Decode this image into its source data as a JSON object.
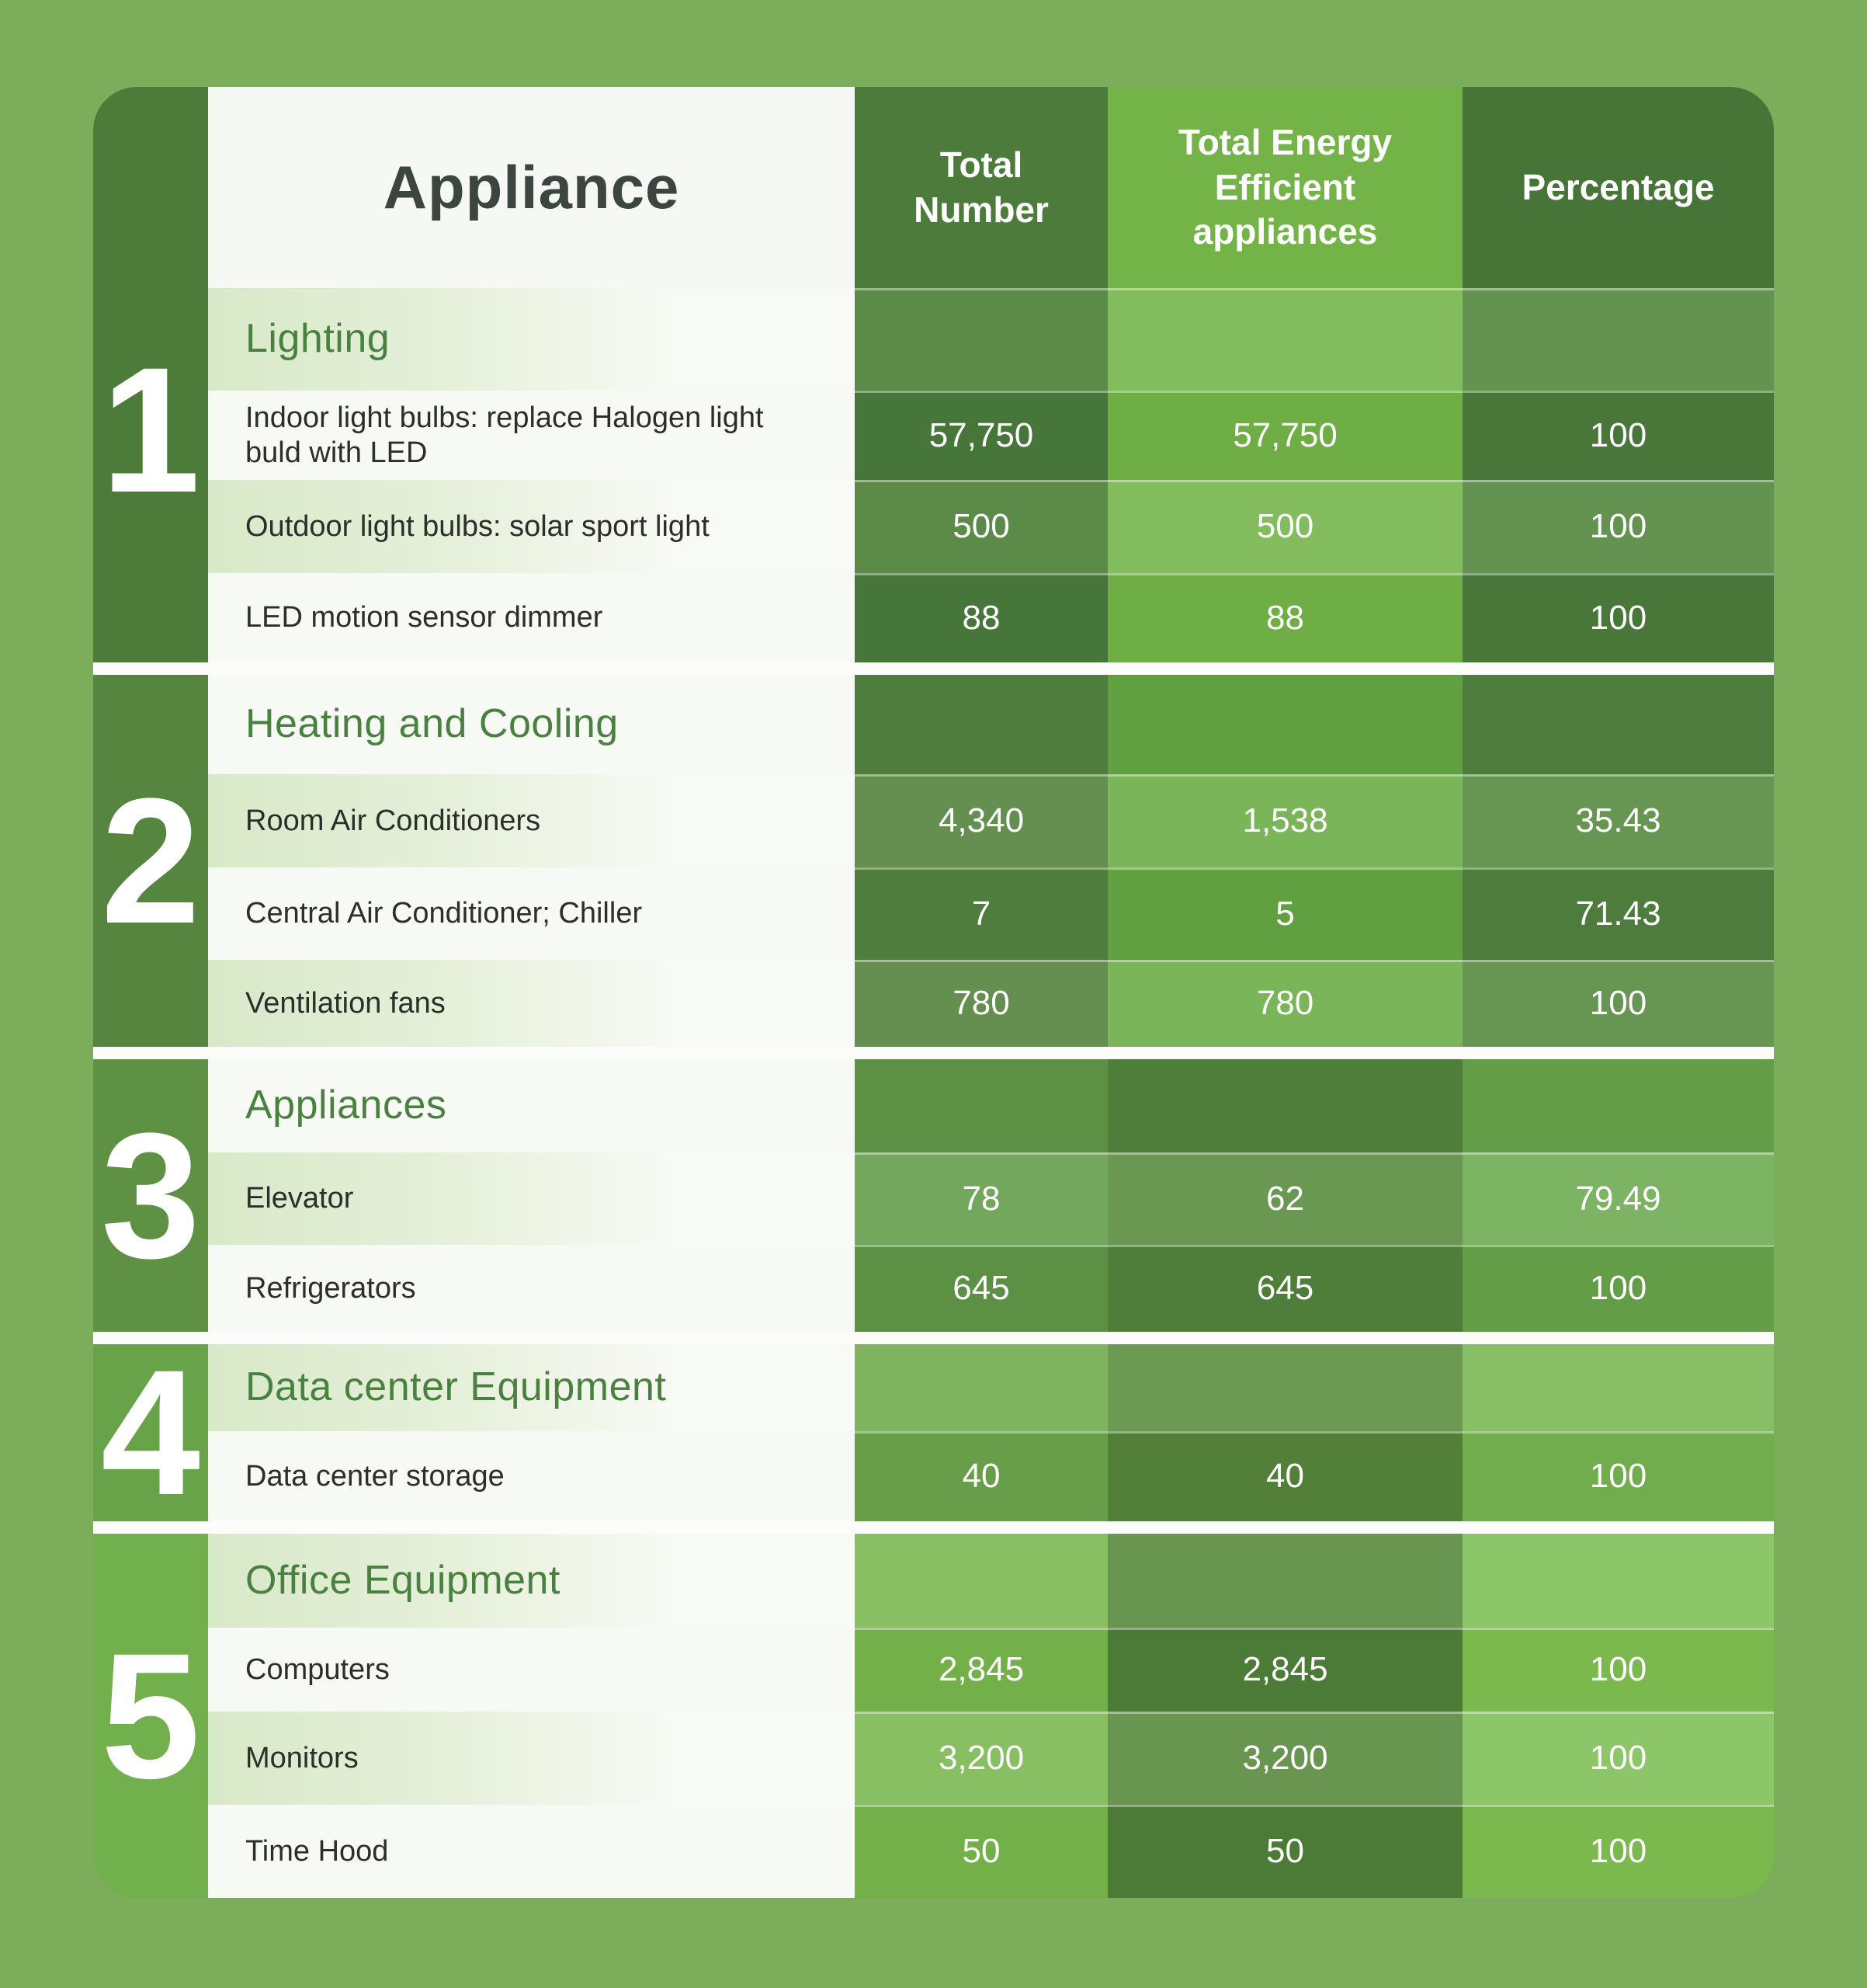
{
  "table": {
    "header": {
      "appliance": "Appliance",
      "total_number": "Total Number",
      "energy_efficient": "Total Energy Efficient appliances",
      "percentage": "Percentage"
    },
    "sections": [
      {
        "index": "1",
        "title": "Lighting",
        "rows": [
          {
            "appliance": "Indoor light bulbs: replace Halogen light buld with LED",
            "total": "57,750",
            "efficient": "57,750",
            "percentage": "100"
          },
          {
            "appliance": "Outdoor light bulbs: solar sport light",
            "total": "500",
            "efficient": "500",
            "percentage": "100"
          },
          {
            "appliance": "LED motion sensor dimmer",
            "total": "88",
            "efficient": "88",
            "percentage": "100"
          }
        ]
      },
      {
        "index": "2",
        "title": "Heating and Cooling",
        "rows": [
          {
            "appliance": "Room Air Conditioners",
            "total": "4,340",
            "efficient": "1,538",
            "percentage": "35.43"
          },
          {
            "appliance": "Central Air Conditioner; Chiller",
            "total": "7",
            "efficient": "5",
            "percentage": "71.43"
          },
          {
            "appliance": "Ventilation fans",
            "total": "780",
            "efficient": "780",
            "percentage": "100"
          }
        ]
      },
      {
        "index": "3",
        "title": "Appliances",
        "rows": [
          {
            "appliance": "Elevator",
            "total": "78",
            "efficient": "62",
            "percentage": "79.49"
          },
          {
            "appliance": "Refrigerators",
            "total": "645",
            "efficient": "645",
            "percentage": "100"
          }
        ]
      },
      {
        "index": "4",
        "title": "Data center Equipment",
        "rows": [
          {
            "appliance": "Data center storage",
            "total": "40",
            "efficient": "40",
            "percentage": "100"
          }
        ]
      },
      {
        "index": "5",
        "title": "Office Equipment",
        "rows": [
          {
            "appliance": "Computers",
            "total": "2,845",
            "efficient": "2,845",
            "percentage": "100"
          },
          {
            "appliance": "Monitors",
            "total": "3,200",
            "efficient": "3,200",
            "percentage": "100"
          },
          {
            "appliance": "Time Hood",
            "total": "50",
            "efficient": "50",
            "percentage": "100"
          }
        ]
      }
    ]
  },
  "palette": {
    "page_bg": "#7BAD5A",
    "gap": "#FCFDFA",
    "appliance_white_row": "#F7F9F5",
    "appliance_pale_from": "#D8E9C8",
    "appliance_pale_to": "#F8FAF5",
    "header_appliance_bg": "#F6F8F4",
    "header_appliance_text": "#3D4540",
    "header_c1": "#4C7B3B",
    "header_c2": "#74B347",
    "header_c3": "#477538",
    "section_title_text": "#4A8040",
    "row_text": "#2B2F2A",
    "number_text": "#FFFFFF",
    "sections": [
      {
        "idx": "#4D7C3A",
        "c1": "#47763A",
        "c1ov": "#5C8B49",
        "c2": "#6FAD45",
        "c2ov": "#82BC5C",
        "c3": "#487739",
        "c3ov": "#649351"
      },
      {
        "idx": "#568540",
        "c1": "#4E7D3E",
        "c1ov": "#648F50",
        "c2": "#61A040",
        "c2ov": "#7BB55A",
        "c3": "#4D7C3C",
        "c3ov": "#679552"
      },
      {
        "idx": "#5F9144",
        "c1": "#5C9045",
        "c1ov": "#73A75E",
        "c2": "#4F7E3A",
        "c2ov": "#6A9752",
        "c3": "#649D47",
        "c3ov": "#7DB463"
      },
      {
        "idx": "#69A349",
        "c1": "#689E49",
        "c1ov": "#7FB360",
        "c2": "#528039",
        "c2ov": "#6C9A53",
        "c3": "#71AD4C",
        "c3ov": "#88BF66"
      },
      {
        "idx": "#72B04E",
        "c1": "#73B04A",
        "c1ov": "#87BF62",
        "c2": "#4C7B37",
        "c2ov": "#689550",
        "c3": "#7BB94E",
        "c3ov": "#8DC668"
      }
    ]
  },
  "chart_data": {
    "type": "table",
    "title": "Energy efficient appliances summary",
    "columns": [
      "Appliance",
      "Total Number",
      "Total Energy Efficient appliances",
      "Percentage"
    ],
    "groups": [
      {
        "group": "Lighting",
        "rows": [
          [
            "Indoor light bulbs: replace Halogen light buld with LED",
            57750,
            57750,
            100
          ],
          [
            "Outdoor light bulbs: solar sport light",
            500,
            500,
            100
          ],
          [
            "LED motion sensor dimmer",
            88,
            88,
            100
          ]
        ]
      },
      {
        "group": "Heating and Cooling",
        "rows": [
          [
            "Room Air Conditioners",
            4340,
            1538,
            35.43
          ],
          [
            "Central Air Conditioner; Chiller",
            7,
            5,
            71.43
          ],
          [
            "Ventilation fans",
            780,
            780,
            100
          ]
        ]
      },
      {
        "group": "Appliances",
        "rows": [
          [
            "Elevator",
            78,
            62,
            79.49
          ],
          [
            "Refrigerators",
            645,
            645,
            100
          ]
        ]
      },
      {
        "group": "Data center Equipment",
        "rows": [
          [
            "Data center storage",
            40,
            40,
            100
          ]
        ]
      },
      {
        "group": "Office Equipment",
        "rows": [
          [
            "Computers",
            2845,
            2845,
            100
          ],
          [
            "Monitors",
            3200,
            3200,
            100
          ],
          [
            "Time Hood",
            50,
            50,
            100
          ]
        ]
      }
    ]
  }
}
